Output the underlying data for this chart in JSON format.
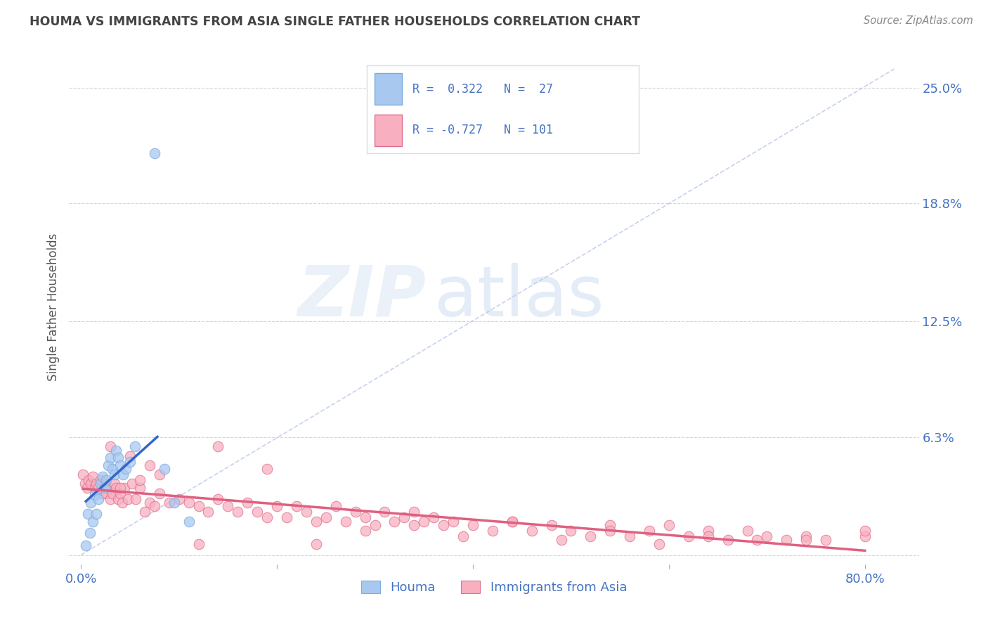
{
  "title": "HOUMA VS IMMIGRANTS FROM ASIA SINGLE FATHER HOUSEHOLDS CORRELATION CHART",
  "source": "Source: ZipAtlas.com",
  "ylabel": "Single Father Households",
  "xlabel": "",
  "x_ticks": [
    0.0,
    0.2,
    0.4,
    0.6,
    0.8
  ],
  "x_tick_labels": [
    "0.0%",
    "",
    "",
    "",
    "80.0%"
  ],
  "y_ticks_right": [
    0.0,
    0.063,
    0.125,
    0.188,
    0.25
  ],
  "y_tick_labels_right": [
    "",
    "6.3%",
    "12.5%",
    "18.8%",
    "25.0%"
  ],
  "xlim": [
    -0.012,
    0.855
  ],
  "ylim": [
    -0.005,
    0.27
  ],
  "title_color": "#444444",
  "source_color": "#888888",
  "axis_color": "#4472c4",
  "background_color": "#ffffff",
  "grid_color": "#cccccc",
  "watermark_zip": "ZIP",
  "watermark_atlas": "atlas",
  "legend_r1": "R =  0.322   N =  27",
  "legend_r2": "R = -0.727   N = 101",
  "legend_label1": "Houma",
  "legend_label2": "Immigrants from Asia",
  "blue_scatter_color": "#a8c8f0",
  "blue_scatter_edge": "#7aaae0",
  "blue_line_color": "#3366cc",
  "pink_scatter_color": "#f8b0c0",
  "pink_scatter_edge": "#e07090",
  "pink_line_color": "#e06080",
  "houma_x": [
    0.005,
    0.007,
    0.009,
    0.01,
    0.012,
    0.014,
    0.016,
    0.018,
    0.02,
    0.022,
    0.024,
    0.026,
    0.028,
    0.03,
    0.032,
    0.034,
    0.036,
    0.038,
    0.04,
    0.043,
    0.046,
    0.05,
    0.055,
    0.085,
    0.095,
    0.11,
    0.075
  ],
  "houma_y": [
    0.005,
    0.022,
    0.012,
    0.028,
    0.018,
    0.032,
    0.022,
    0.03,
    0.038,
    0.042,
    0.036,
    0.04,
    0.048,
    0.052,
    0.046,
    0.043,
    0.056,
    0.052,
    0.048,
    0.043,
    0.046,
    0.05,
    0.058,
    0.046,
    0.028,
    0.018,
    0.215
  ],
  "asia_x": [
    0.002,
    0.004,
    0.006,
    0.008,
    0.01,
    0.012,
    0.014,
    0.016,
    0.018,
    0.02,
    0.022,
    0.024,
    0.026,
    0.028,
    0.03,
    0.032,
    0.034,
    0.036,
    0.038,
    0.04,
    0.042,
    0.044,
    0.048,
    0.052,
    0.056,
    0.06,
    0.065,
    0.07,
    0.075,
    0.08,
    0.09,
    0.1,
    0.11,
    0.12,
    0.13,
    0.14,
    0.15,
    0.16,
    0.17,
    0.18,
    0.19,
    0.2,
    0.21,
    0.22,
    0.23,
    0.24,
    0.25,
    0.26,
    0.27,
    0.28,
    0.29,
    0.3,
    0.31,
    0.32,
    0.33,
    0.34,
    0.35,
    0.36,
    0.37,
    0.38,
    0.4,
    0.42,
    0.44,
    0.46,
    0.48,
    0.5,
    0.52,
    0.54,
    0.56,
    0.58,
    0.6,
    0.62,
    0.64,
    0.66,
    0.68,
    0.7,
    0.72,
    0.74,
    0.76,
    0.8,
    0.03,
    0.04,
    0.05,
    0.06,
    0.07,
    0.08,
    0.14,
    0.19,
    0.24,
    0.29,
    0.34,
    0.39,
    0.44,
    0.49,
    0.54,
    0.59,
    0.64,
    0.69,
    0.74,
    0.8,
    0.12
  ],
  "asia_y": [
    0.043,
    0.038,
    0.036,
    0.04,
    0.038,
    0.042,
    0.036,
    0.038,
    0.036,
    0.04,
    0.033,
    0.038,
    0.033,
    0.036,
    0.03,
    0.033,
    0.038,
    0.036,
    0.03,
    0.033,
    0.028,
    0.036,
    0.03,
    0.038,
    0.03,
    0.036,
    0.023,
    0.028,
    0.026,
    0.033,
    0.028,
    0.03,
    0.028,
    0.026,
    0.023,
    0.03,
    0.026,
    0.023,
    0.028,
    0.023,
    0.02,
    0.026,
    0.02,
    0.026,
    0.023,
    0.018,
    0.02,
    0.026,
    0.018,
    0.023,
    0.02,
    0.016,
    0.023,
    0.018,
    0.02,
    0.016,
    0.018,
    0.02,
    0.016,
    0.018,
    0.016,
    0.013,
    0.018,
    0.013,
    0.016,
    0.013,
    0.01,
    0.016,
    0.01,
    0.013,
    0.016,
    0.01,
    0.013,
    0.008,
    0.013,
    0.01,
    0.008,
    0.01,
    0.008,
    0.01,
    0.058,
    0.036,
    0.053,
    0.04,
    0.048,
    0.043,
    0.058,
    0.046,
    0.006,
    0.013,
    0.023,
    0.01,
    0.018,
    0.008,
    0.013,
    0.006,
    0.01,
    0.008,
    0.008,
    0.013,
    0.006
  ]
}
